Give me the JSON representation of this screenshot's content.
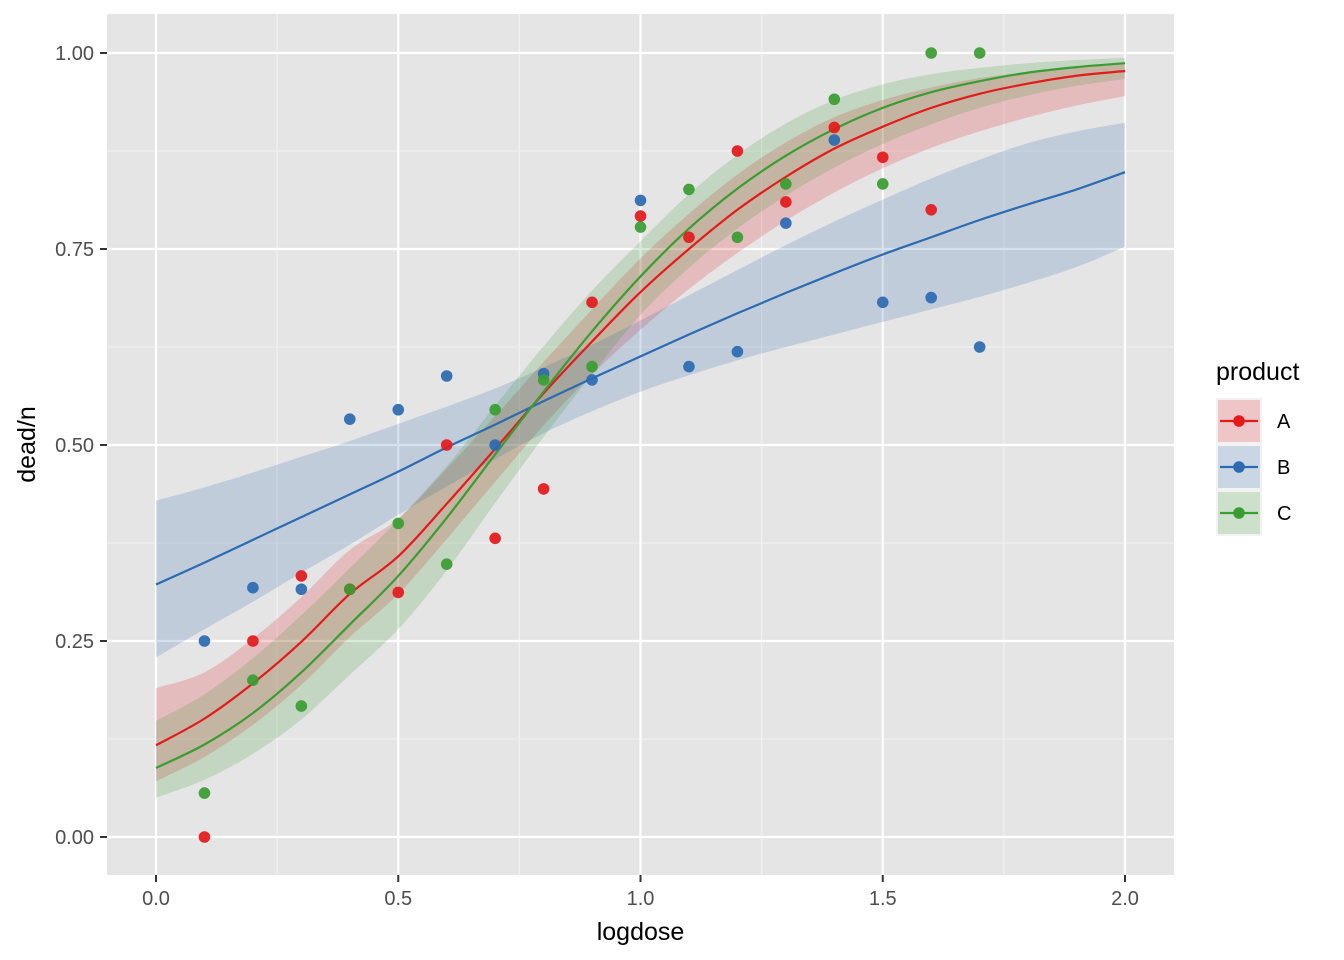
{
  "chart_data": {
    "type": "scatter",
    "xlabel": "logdose",
    "ylabel": "dead/n",
    "xlim": [
      -0.1,
      2.1
    ],
    "ylim": [
      -0.05,
      1.05
    ],
    "x_ticks": [
      0.0,
      0.5,
      1.0,
      1.5,
      2.0
    ],
    "x_tick_labels": [
      "0.0",
      "0.5",
      "1.0",
      "1.5",
      "2.0"
    ],
    "y_ticks": [
      0.0,
      0.25,
      0.5,
      0.75,
      1.0
    ],
    "y_tick_labels": [
      "0.00",
      "0.25",
      "0.50",
      "0.75",
      "1.00"
    ],
    "grid": true,
    "legend_title": "product",
    "legend_position": "right",
    "series": [
      {
        "name": "A",
        "color": "#e41a1c",
        "points": [
          [
            0.1,
            0.0
          ],
          [
            0.2,
            0.25
          ],
          [
            0.3,
            0.333
          ],
          [
            0.4,
            0.316
          ],
          [
            0.5,
            0.312
          ],
          [
            0.6,
            0.5
          ],
          [
            0.7,
            0.381
          ],
          [
            0.8,
            0.444
          ],
          [
            0.9,
            0.682
          ],
          [
            1.0,
            0.792
          ],
          [
            1.1,
            0.765
          ],
          [
            1.2,
            0.875
          ],
          [
            1.3,
            0.81
          ],
          [
            1.4,
            0.905
          ],
          [
            1.5,
            0.867
          ],
          [
            1.6,
            0.8
          ]
        ],
        "fit": [
          [
            0.0,
            0.117
          ],
          [
            0.1,
            0.151
          ],
          [
            0.2,
            0.196
          ],
          [
            0.3,
            0.249
          ],
          [
            0.4,
            0.31
          ],
          [
            0.5,
            0.358
          ],
          [
            0.6,
            0.425
          ],
          [
            0.7,
            0.495
          ],
          [
            0.8,
            0.566
          ],
          [
            0.9,
            0.632
          ],
          [
            1.0,
            0.695
          ],
          [
            1.1,
            0.75
          ],
          [
            1.2,
            0.8
          ],
          [
            1.3,
            0.842
          ],
          [
            1.4,
            0.878
          ],
          [
            1.5,
            0.906
          ],
          [
            1.6,
            0.93
          ],
          [
            1.7,
            0.948
          ],
          [
            1.8,
            0.961
          ],
          [
            1.9,
            0.971
          ],
          [
            2.0,
            0.977
          ]
        ],
        "band_lower": [
          [
            0.0,
            0.071
          ],
          [
            0.1,
            0.102
          ],
          [
            0.2,
            0.143
          ],
          [
            0.3,
            0.194
          ],
          [
            0.4,
            0.255
          ],
          [
            0.5,
            0.31
          ],
          [
            0.6,
            0.38
          ],
          [
            0.7,
            0.453
          ],
          [
            0.8,
            0.525
          ],
          [
            0.9,
            0.59
          ],
          [
            1.0,
            0.647
          ],
          [
            1.1,
            0.699
          ],
          [
            1.2,
            0.745
          ],
          [
            1.3,
            0.786
          ],
          [
            1.4,
            0.822
          ],
          [
            1.5,
            0.853
          ],
          [
            1.6,
            0.879
          ],
          [
            1.7,
            0.9
          ],
          [
            1.8,
            0.918
          ],
          [
            1.9,
            0.933
          ],
          [
            2.0,
            0.945
          ]
        ],
        "band_upper": [
          [
            0.0,
            0.19
          ],
          [
            0.1,
            0.21
          ],
          [
            0.2,
            0.253
          ],
          [
            0.3,
            0.306
          ],
          [
            0.4,
            0.366
          ],
          [
            0.5,
            0.406
          ],
          [
            0.6,
            0.47
          ],
          [
            0.7,
            0.537
          ],
          [
            0.8,
            0.606
          ],
          [
            0.9,
            0.673
          ],
          [
            1.0,
            0.738
          ],
          [
            1.1,
            0.795
          ],
          [
            1.2,
            0.845
          ],
          [
            1.3,
            0.886
          ],
          [
            1.4,
            0.918
          ],
          [
            1.5,
            0.94
          ],
          [
            1.6,
            0.956
          ],
          [
            1.7,
            0.968
          ],
          [
            1.8,
            0.976
          ],
          [
            1.9,
            0.982
          ],
          [
            2.0,
            0.987
          ]
        ]
      },
      {
        "name": "B",
        "color": "#2c6bb0",
        "points": [
          [
            0.1,
            0.25
          ],
          [
            0.2,
            0.318
          ],
          [
            0.3,
            0.316
          ],
          [
            0.4,
            0.533
          ],
          [
            0.5,
            0.545
          ],
          [
            0.6,
            0.588
          ],
          [
            0.7,
            0.5
          ],
          [
            0.8,
            0.591
          ],
          [
            0.9,
            0.583
          ],
          [
            1.0,
            0.812
          ],
          [
            1.1,
            0.6
          ],
          [
            1.2,
            0.619
          ],
          [
            1.3,
            0.783
          ],
          [
            1.4,
            0.889
          ],
          [
            1.5,
            0.682
          ],
          [
            1.6,
            0.688
          ],
          [
            1.7,
            0.625
          ]
        ],
        "fit": [
          [
            0.0,
            0.322
          ],
          [
            0.1,
            0.35
          ],
          [
            0.2,
            0.379
          ],
          [
            0.3,
            0.408
          ],
          [
            0.4,
            0.437
          ],
          [
            0.5,
            0.466
          ],
          [
            0.6,
            0.497
          ],
          [
            0.7,
            0.526
          ],
          [
            0.8,
            0.556
          ],
          [
            0.9,
            0.585
          ],
          [
            1.0,
            0.613
          ],
          [
            1.1,
            0.641
          ],
          [
            1.2,
            0.668
          ],
          [
            1.3,
            0.694
          ],
          [
            1.4,
            0.719
          ],
          [
            1.5,
            0.743
          ],
          [
            1.6,
            0.765
          ],
          [
            1.7,
            0.787
          ],
          [
            1.8,
            0.807
          ],
          [
            1.9,
            0.826
          ],
          [
            2.0,
            0.848
          ]
        ],
        "band_lower": [
          [
            0.0,
            0.229
          ],
          [
            0.1,
            0.265
          ],
          [
            0.2,
            0.3
          ],
          [
            0.3,
            0.337
          ],
          [
            0.4,
            0.373
          ],
          [
            0.5,
            0.411
          ],
          [
            0.6,
            0.447
          ],
          [
            0.7,
            0.482
          ],
          [
            0.8,
            0.515
          ],
          [
            0.9,
            0.543
          ],
          [
            1.0,
            0.568
          ],
          [
            1.1,
            0.589
          ],
          [
            1.2,
            0.608
          ],
          [
            1.3,
            0.625
          ],
          [
            1.4,
            0.641
          ],
          [
            1.5,
            0.657
          ],
          [
            1.6,
            0.673
          ],
          [
            1.7,
            0.689
          ],
          [
            1.8,
            0.707
          ],
          [
            1.9,
            0.727
          ],
          [
            2.0,
            0.753
          ]
        ],
        "band_upper": [
          [
            0.0,
            0.429
          ],
          [
            0.1,
            0.446
          ],
          [
            0.2,
            0.465
          ],
          [
            0.3,
            0.485
          ],
          [
            0.4,
            0.505
          ],
          [
            0.5,
            0.527
          ],
          [
            0.6,
            0.549
          ],
          [
            0.7,
            0.572
          ],
          [
            0.8,
            0.599
          ],
          [
            0.9,
            0.628
          ],
          [
            1.0,
            0.659
          ],
          [
            1.1,
            0.691
          ],
          [
            1.2,
            0.723
          ],
          [
            1.3,
            0.755
          ],
          [
            1.4,
            0.785
          ],
          [
            1.5,
            0.813
          ],
          [
            1.6,
            0.84
          ],
          [
            1.7,
            0.864
          ],
          [
            1.8,
            0.885
          ],
          [
            1.9,
            0.9
          ],
          [
            2.0,
            0.911
          ]
        ]
      },
      {
        "name": "C",
        "color": "#3a9d32",
        "points": [
          [
            0.1,
            0.056
          ],
          [
            0.2,
            0.2
          ],
          [
            0.3,
            0.167
          ],
          [
            0.4,
            0.316
          ],
          [
            0.5,
            0.4
          ],
          [
            0.6,
            0.348
          ],
          [
            0.7,
            0.545
          ],
          [
            0.8,
            0.583
          ],
          [
            0.9,
            0.6
          ],
          [
            1.0,
            0.778
          ],
          [
            1.1,
            0.826
          ],
          [
            1.2,
            0.765
          ],
          [
            1.3,
            0.833
          ],
          [
            1.4,
            0.941
          ],
          [
            1.5,
            0.833
          ],
          [
            1.6,
            1.0
          ],
          [
            1.7,
            1.0
          ]
        ],
        "fit": [
          [
            0.0,
            0.088
          ],
          [
            0.1,
            0.118
          ],
          [
            0.2,
            0.158
          ],
          [
            0.3,
            0.21
          ],
          [
            0.4,
            0.271
          ],
          [
            0.5,
            0.333
          ],
          [
            0.6,
            0.407
          ],
          [
            0.7,
            0.488
          ],
          [
            0.8,
            0.568
          ],
          [
            0.9,
            0.645
          ],
          [
            1.0,
            0.715
          ],
          [
            1.1,
            0.776
          ],
          [
            1.2,
            0.827
          ],
          [
            1.3,
            0.869
          ],
          [
            1.4,
            0.903
          ],
          [
            1.5,
            0.93
          ],
          [
            1.6,
            0.95
          ],
          [
            1.7,
            0.964
          ],
          [
            1.8,
            0.975
          ],
          [
            1.9,
            0.982
          ],
          [
            2.0,
            0.987
          ]
        ],
        "band_lower": [
          [
            0.0,
            0.05
          ],
          [
            0.1,
            0.073
          ],
          [
            0.2,
            0.106
          ],
          [
            0.3,
            0.15
          ],
          [
            0.4,
            0.207
          ],
          [
            0.5,
            0.265
          ],
          [
            0.6,
            0.34
          ],
          [
            0.7,
            0.426
          ],
          [
            0.8,
            0.51
          ],
          [
            0.9,
            0.59
          ],
          [
            1.0,
            0.666
          ],
          [
            1.1,
            0.726
          ],
          [
            1.2,
            0.776
          ],
          [
            1.3,
            0.818
          ],
          [
            1.4,
            0.854
          ],
          [
            1.5,
            0.884
          ],
          [
            1.6,
            0.909
          ],
          [
            1.7,
            0.93
          ],
          [
            1.8,
            0.946
          ],
          [
            1.9,
            0.958
          ],
          [
            2.0,
            0.967
          ]
        ],
        "band_upper": [
          [
            0.0,
            0.148
          ],
          [
            0.1,
            0.182
          ],
          [
            0.2,
            0.228
          ],
          [
            0.3,
            0.283
          ],
          [
            0.4,
            0.343
          ],
          [
            0.5,
            0.405
          ],
          [
            0.6,
            0.473
          ],
          [
            0.7,
            0.55
          ],
          [
            0.8,
            0.626
          ],
          [
            0.9,
            0.697
          ],
          [
            1.0,
            0.76
          ],
          [
            1.1,
            0.82
          ],
          [
            1.2,
            0.87
          ],
          [
            1.3,
            0.91
          ],
          [
            1.4,
            0.94
          ],
          [
            1.5,
            0.96
          ],
          [
            1.6,
            0.973
          ],
          [
            1.7,
            0.981
          ],
          [
            1.8,
            0.987
          ],
          [
            1.9,
            0.991
          ],
          [
            2.0,
            0.994
          ]
        ]
      }
    ]
  }
}
